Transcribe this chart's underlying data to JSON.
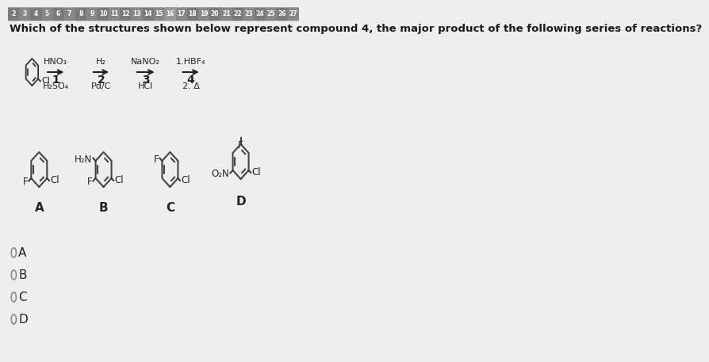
{
  "bg_color": "#f0eeec",
  "top_bar_bg": "#888888",
  "top_bar_numbers": [
    "2",
    "3",
    "4",
    "5",
    "6",
    "7",
    "8",
    "9",
    "10",
    "11",
    "12",
    "13",
    "14",
    "15",
    "16",
    "17",
    "18",
    "19",
    "20",
    "21",
    "22",
    "23",
    "24",
    "25",
    "26",
    "27"
  ],
  "question_text": "Which of the structures shown below represent compound 4, the major product of the following series of reactions?",
  "reagents": [
    {
      "top": "HNO₃",
      "bot": "H₂SO₄",
      "step": "1"
    },
    {
      "top": "H₂",
      "bot": "Pd/C",
      "step": "2"
    },
    {
      "top": "NaNO₂",
      "bot": "HCl",
      "step": "3"
    },
    {
      "top": "1.HBF₄",
      "bot": "2. Δ",
      "step": "4"
    }
  ],
  "radio_options": [
    "A",
    "B",
    "C",
    "D"
  ],
  "struct_labels": [
    "A",
    "B",
    "C",
    "D"
  ]
}
